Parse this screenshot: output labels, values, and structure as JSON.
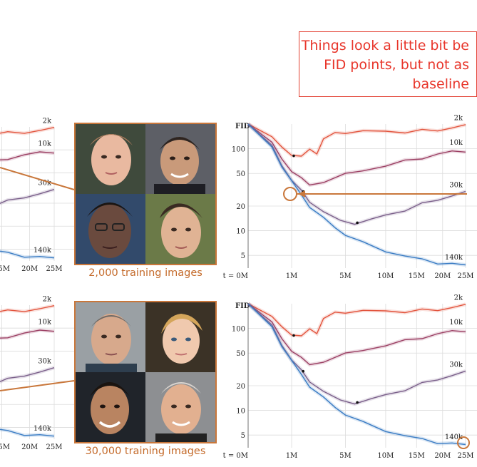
{
  "callout": {
    "lines": [
      "Things look a little bit be",
      "FID points, but not as",
      "baseline"
    ]
  },
  "panels": [
    {
      "caption": "2,000 training images"
    },
    {
      "caption": "30,000 training images"
    }
  ],
  "accent_color": "#c9773b",
  "chart_data": [
    {
      "type": "line",
      "ylabel": "FID",
      "yscale": "log",
      "ylim": [
        3.5,
        200
      ],
      "yticks": [
        "5",
        "10",
        "20",
        "50",
        "100"
      ],
      "xscale": "sqrt",
      "xlim": [
        0,
        25
      ],
      "xticks": [
        "t = 0M",
        "1M",
        "5M",
        "10M",
        "15M",
        "20M",
        "25M"
      ],
      "series": [
        {
          "name": "2k",
          "color": "#e2543d",
          "points": [
            [
              0,
              200
            ],
            [
              0.3,
              140
            ],
            [
              0.6,
              105
            ],
            [
              1,
              85
            ],
            [
              1.5,
              82
            ],
            [
              2,
              95
            ],
            [
              2.5,
              90
            ],
            [
              3,
              130
            ],
            [
              4,
              155
            ],
            [
              5,
              160
            ],
            [
              7,
              160
            ],
            [
              10,
              165
            ],
            [
              13,
              160
            ],
            [
              16,
              165
            ],
            [
              19,
              170
            ],
            [
              22,
              180
            ],
            [
              25,
              190
            ]
          ]
        },
        {
          "name": "10k",
          "color": "#9b3f63",
          "points": [
            [
              0,
              200
            ],
            [
              0.3,
              120
            ],
            [
              0.6,
              75
            ],
            [
              1,
              55
            ],
            [
              1.5,
              43
            ],
            [
              2,
              36
            ],
            [
              3,
              40
            ],
            [
              5,
              48
            ],
            [
              7,
              55
            ],
            [
              10,
              62
            ],
            [
              13,
              70
            ],
            [
              16,
              78
            ],
            [
              19,
              85
            ],
            [
              22,
              92
            ],
            [
              25,
              95
            ]
          ]
        },
        {
          "name": "30k",
          "color": "#7a5f8a",
          "points": [
            [
              0,
              200
            ],
            [
              0.3,
              110
            ],
            [
              0.6,
              62
            ],
            [
              1,
              42
            ],
            [
              1.5,
              30
            ],
            [
              2,
              23
            ],
            [
              3,
              17
            ],
            [
              4.5,
              13
            ],
            [
              6,
              12.5
            ],
            [
              8,
              13.5
            ],
            [
              10,
              15.5
            ],
            [
              13,
              18
            ],
            [
              16,
              21
            ],
            [
              19,
              24
            ],
            [
              22,
              27
            ],
            [
              25,
              29
            ]
          ]
        },
        {
          "name": "140k",
          "color": "#3a7cc4",
          "points": [
            [
              0,
              200
            ],
            [
              0.3,
              105
            ],
            [
              0.6,
              60
            ],
            [
              1,
              40
            ],
            [
              1.5,
              27
            ],
            [
              2,
              20
            ],
            [
              3,
              14
            ],
            [
              4,
              11
            ],
            [
              5,
              9
            ],
            [
              7,
              7
            ],
            [
              10,
              5.7
            ],
            [
              13,
              4.9
            ],
            [
              16,
              4.4
            ],
            [
              19,
              4.1
            ],
            [
              22,
              3.9
            ],
            [
              25,
              3.8
            ]
          ]
        }
      ]
    }
  ]
}
